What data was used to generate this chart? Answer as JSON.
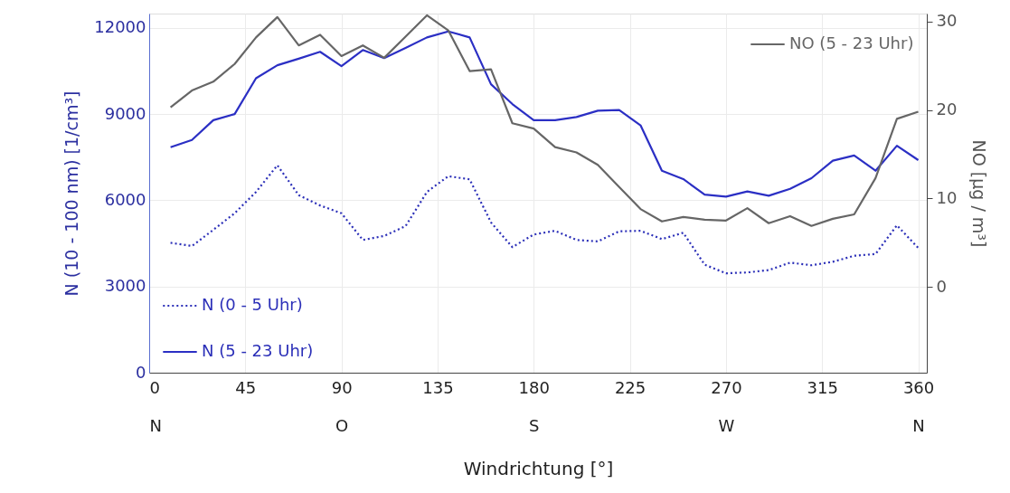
{
  "chart_data": {
    "type": "line",
    "xlabel": "Windrichtung [°]",
    "ylabel": "N (10 - 100 nm) [1/cm³]",
    "y2label": "NO [µg / m³]",
    "x": [
      10,
      20,
      30,
      40,
      50,
      60,
      70,
      80,
      90,
      100,
      110,
      120,
      130,
      140,
      150,
      160,
      170,
      180,
      190,
      200,
      210,
      220,
      230,
      240,
      250,
      260,
      270,
      280,
      290,
      300,
      310,
      320,
      330,
      340,
      350,
      360
    ],
    "series": [
      {
        "name": "N (0 - 5 Uhr)",
        "color": "#2b2fb8",
        "line_style": "dotted",
        "values": [
          4520,
          4410,
          4970,
          5550,
          6290,
          7220,
          6180,
          5820,
          5550,
          4620,
          4760,
          5100,
          6290,
          6840,
          6730,
          5230,
          4370,
          4810,
          4940,
          4620,
          4570,
          4920,
          4940,
          4650,
          4870,
          3760,
          3460,
          3490,
          3570,
          3830,
          3740,
          3860,
          4070,
          4130,
          5130,
          4340
        ]
      },
      {
        "name": "N (5 - 23 Uhr)",
        "color": "#2b2fc4",
        "line_style": "solid",
        "values": [
          7850,
          8100,
          8790,
          9000,
          10250,
          10700,
          10930,
          11170,
          10670,
          11230,
          10950,
          11300,
          11670,
          11880,
          11670,
          10040,
          9350,
          8790,
          8790,
          8900,
          9120,
          9140,
          8610,
          7030,
          6740,
          6200,
          6130,
          6310,
          6160,
          6400,
          6770,
          7380,
          7560,
          7030,
          7900,
          7400
        ]
      },
      {
        "name": "NO (5 - 23 Uhr)",
        "color": "#666666",
        "line_style": "solid",
        "axis": "y2",
        "values": [
          20.3,
          22.2,
          23.2,
          25.2,
          28.2,
          30.5,
          27.3,
          28.5,
          26.1,
          27.3,
          25.9,
          28.3,
          30.7,
          29.0,
          24.4,
          24.6,
          18.5,
          17.9,
          15.8,
          15.2,
          13.8,
          11.3,
          8.8,
          7.4,
          7.9,
          7.6,
          7.5,
          8.9,
          7.2,
          8.0,
          6.9,
          7.7,
          8.2,
          12.3,
          19.0,
          19.8
        ]
      }
    ],
    "xlim": [
      0,
      364
    ],
    "xticks": [
      {
        "value": 0,
        "label": "0\nN"
      },
      45,
      {
        "value": 90,
        "label": "90\nO"
      },
      135,
      {
        "value": 180,
        "label": "180\nS"
      },
      225,
      {
        "value": 270,
        "label": "270\nW"
      },
      315,
      {
        "value": 360,
        "label": "360\nN"
      }
    ],
    "ylim": [
      0,
      12500
    ],
    "yticks": [
      0,
      3000,
      6000,
      9000,
      12000
    ],
    "y2lim": [
      -9.7,
      30.9
    ],
    "y2ticks": [
      0,
      10,
      20,
      30
    ],
    "grid": true,
    "legend": "bottom left"
  }
}
